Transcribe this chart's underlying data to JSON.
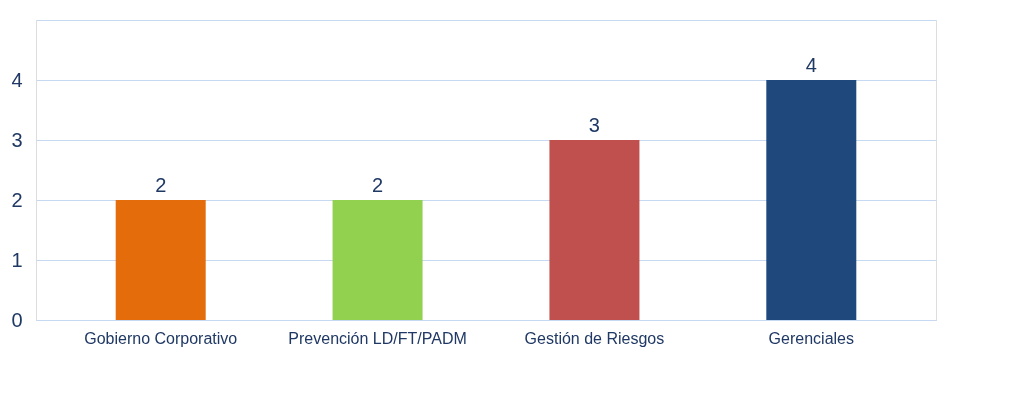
{
  "chart_data": {
    "type": "bar",
    "categories": [
      "Gobierno Corporativo",
      "Prevención LD/FT/PADM",
      "Gestión de Riesgos",
      "Gerenciales"
    ],
    "values": [
      2,
      2,
      3,
      4
    ],
    "colors": [
      "#e46c0a",
      "#92d050",
      "#c0504d",
      "#1f497d"
    ],
    "ylim": [
      0,
      5
    ],
    "yticks": [
      0,
      1,
      2,
      3,
      4,
      {
        "value": 5,
        "label": null
      }
    ],
    "grid": "y",
    "data_labels": true
  }
}
